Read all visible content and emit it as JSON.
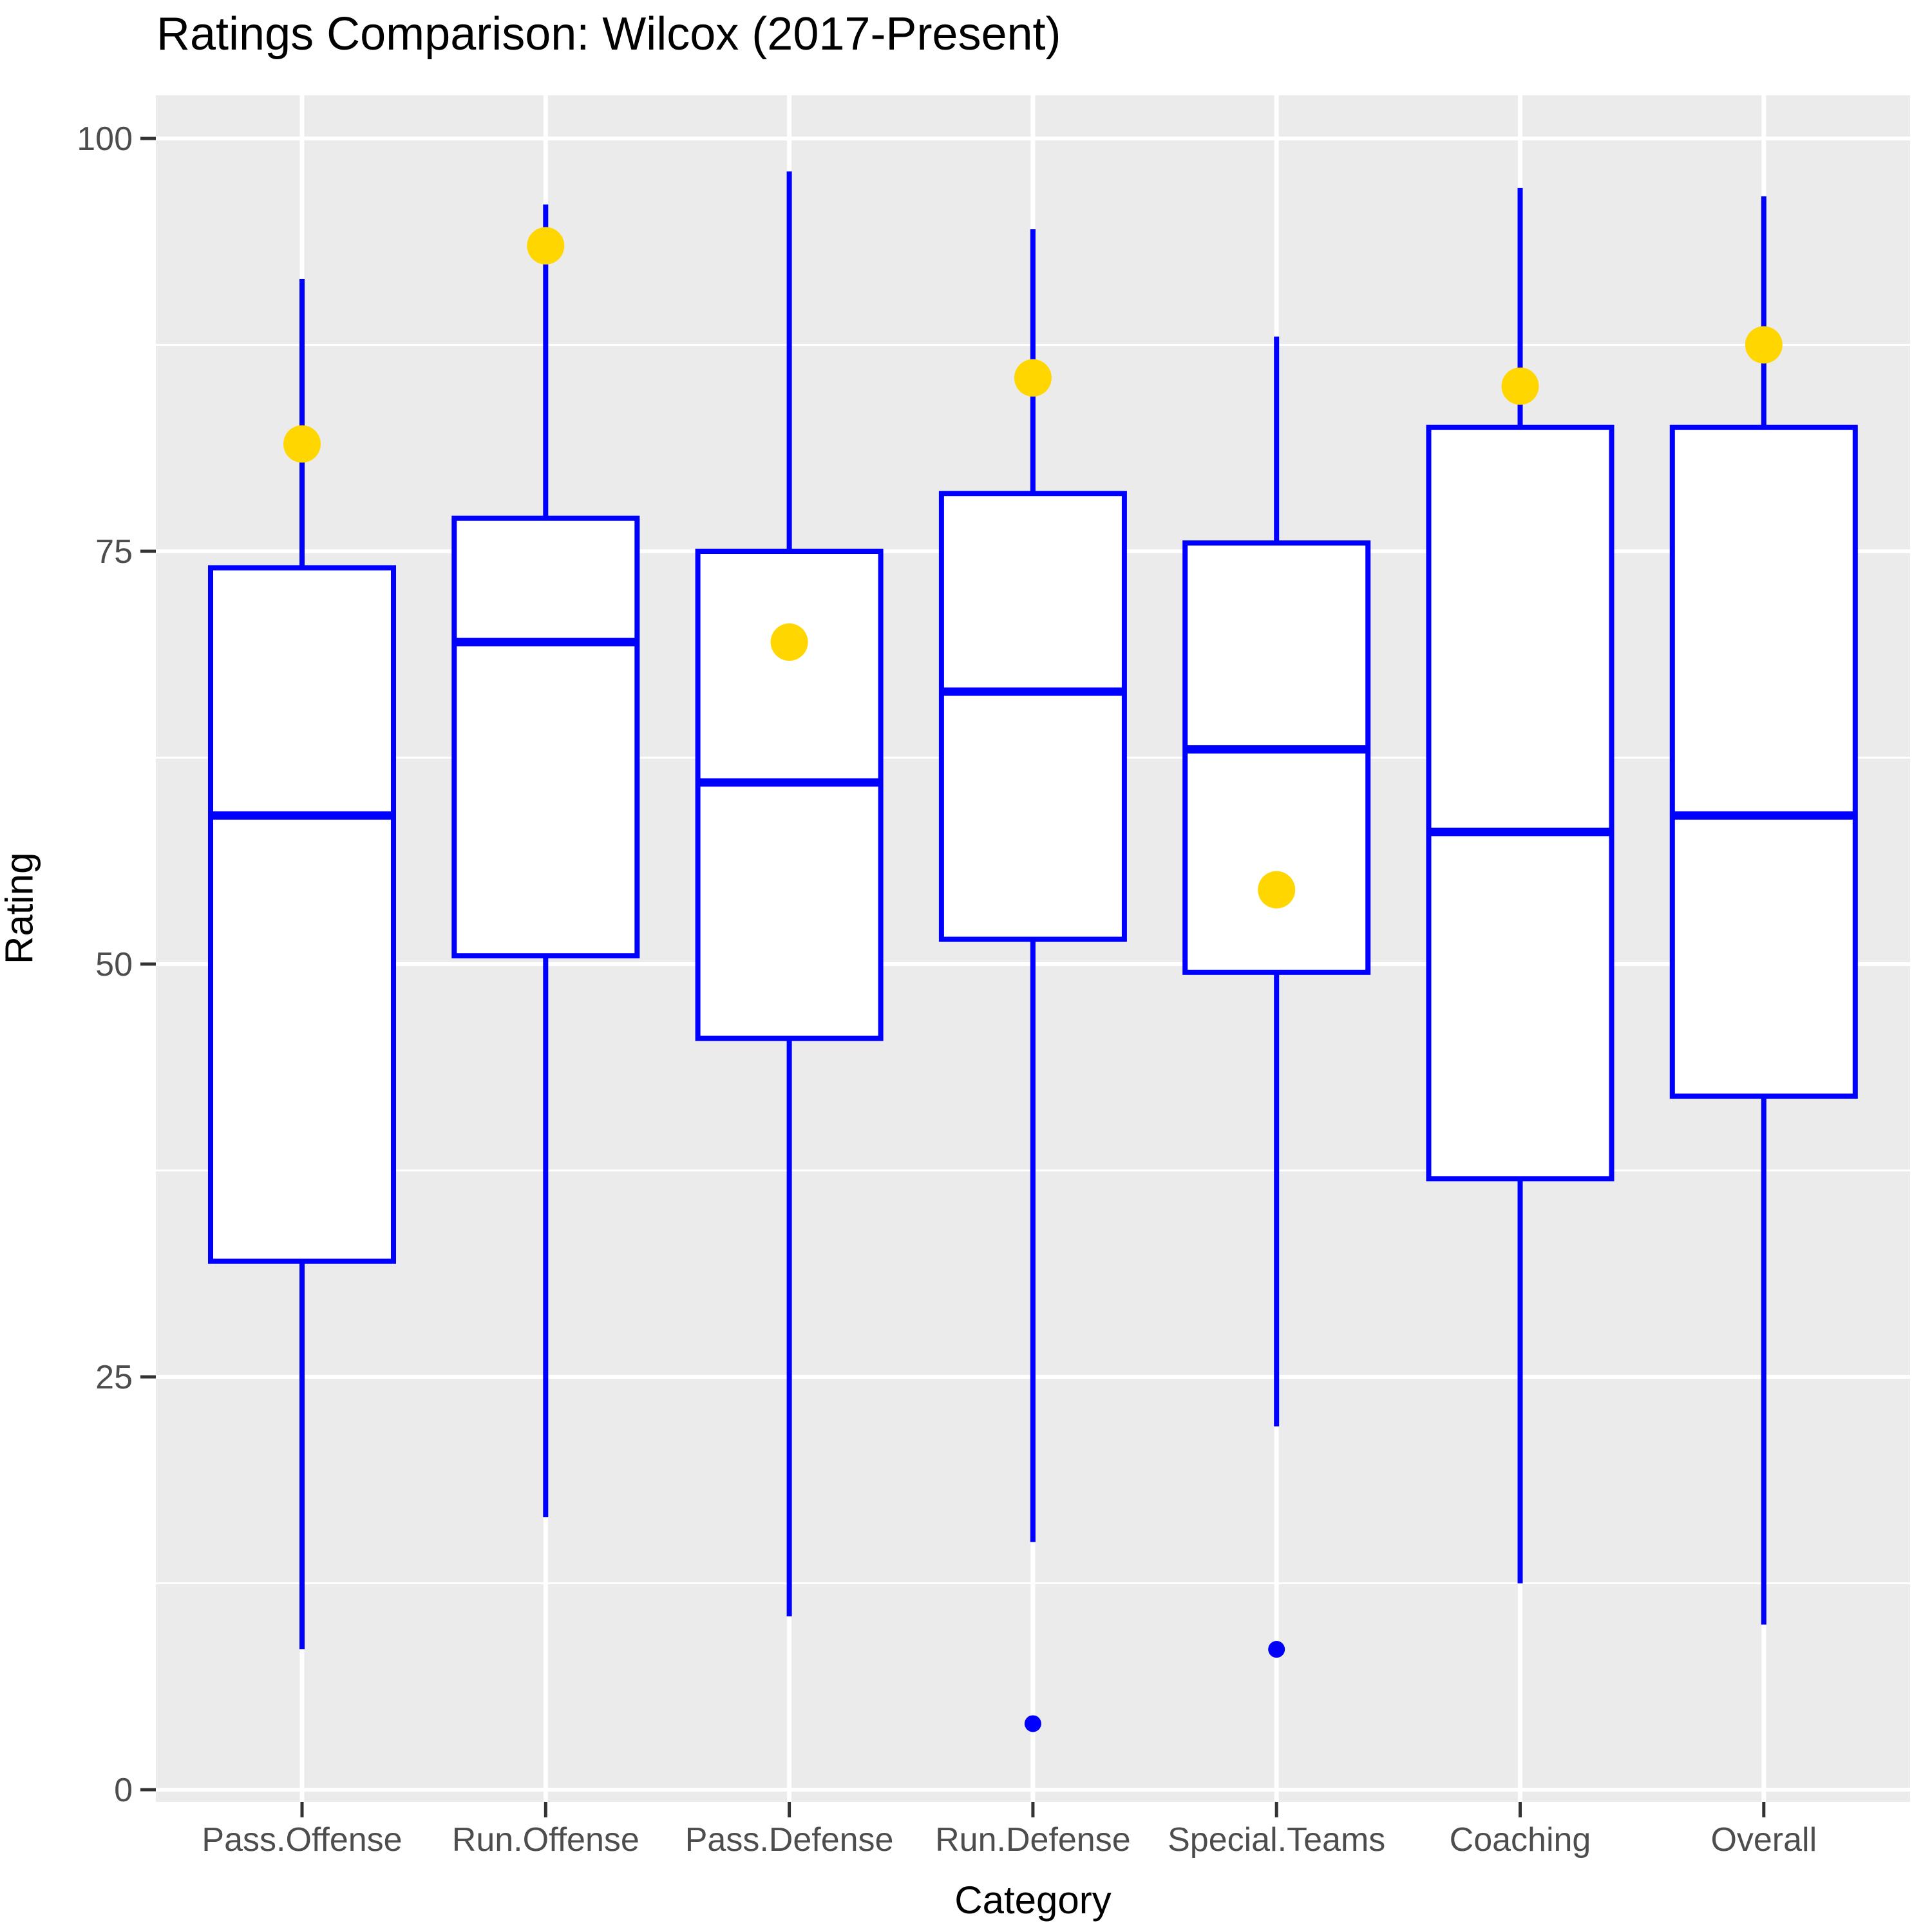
{
  "chart_data": {
    "type": "boxplot",
    "title": "Ratings Comparison: Wilcox (2017-Present)",
    "xlabel": "Category",
    "ylabel": "Rating",
    "ylim": [
      0,
      100
    ],
    "yticks": [
      0,
      25,
      50,
      75,
      100
    ],
    "minor_gridlines_y": [
      12.5,
      37.5,
      62.5,
      87.5
    ],
    "grid": "on",
    "legend": "none",
    "categories": [
      "Pass.Offense",
      "Run.Offense",
      "Pass.Defense",
      "Run.Defense",
      "Special.Teams",
      "Coaching",
      "Overall"
    ],
    "boxes": [
      {
        "category": "Pass.Offense",
        "whisker_low": 8.5,
        "q1": 32,
        "median": 59,
        "q3": 74,
        "whisker_high": 91.5,
        "highlight_dot": 81.5,
        "outliers": []
      },
      {
        "category": "Run.Offense",
        "whisker_low": 16.5,
        "q1": 50.5,
        "median": 69.5,
        "q3": 77,
        "whisker_high": 96,
        "highlight_dot": 93.5,
        "outliers": []
      },
      {
        "category": "Pass.Defense",
        "whisker_low": 10.5,
        "q1": 45.5,
        "median": 61,
        "q3": 75,
        "whisker_high": 98,
        "highlight_dot": 69.5,
        "outliers": []
      },
      {
        "category": "Run.Defense",
        "whisker_low": 15,
        "q1": 51.5,
        "median": 66.5,
        "q3": 78.5,
        "whisker_high": 94.5,
        "highlight_dot": 85.5,
        "outliers": [
          4
        ]
      },
      {
        "category": "Special.Teams",
        "whisker_low": 22,
        "q1": 49.5,
        "median": 63,
        "q3": 75.5,
        "whisker_high": 88,
        "highlight_dot": 54.5,
        "outliers": [
          8.5
        ]
      },
      {
        "category": "Coaching",
        "whisker_low": 12.5,
        "q1": 37,
        "median": 58,
        "q3": 82.5,
        "whisker_high": 97,
        "highlight_dot": 85,
        "outliers": []
      },
      {
        "category": "Overall",
        "whisker_low": 10,
        "q1": 42,
        "median": 59,
        "q3": 82.5,
        "whisker_high": 96.5,
        "highlight_dot": 87.5,
        "outliers": []
      }
    ],
    "colors": {
      "box_stroke": "#0000FF",
      "box_fill": "#FFFFFF",
      "median": "#0000FF",
      "whisker": "#0000FF",
      "highlight_dot": "#FFD600",
      "outlier": "#0000FF",
      "panel_background": "#EBEBEB",
      "gridline_major": "#FFFFFF",
      "gridline_minor": "#FFFFFF",
      "axis_text": "#4D4D4D",
      "tick_mark": "#333333",
      "title_text": "#000000"
    }
  }
}
